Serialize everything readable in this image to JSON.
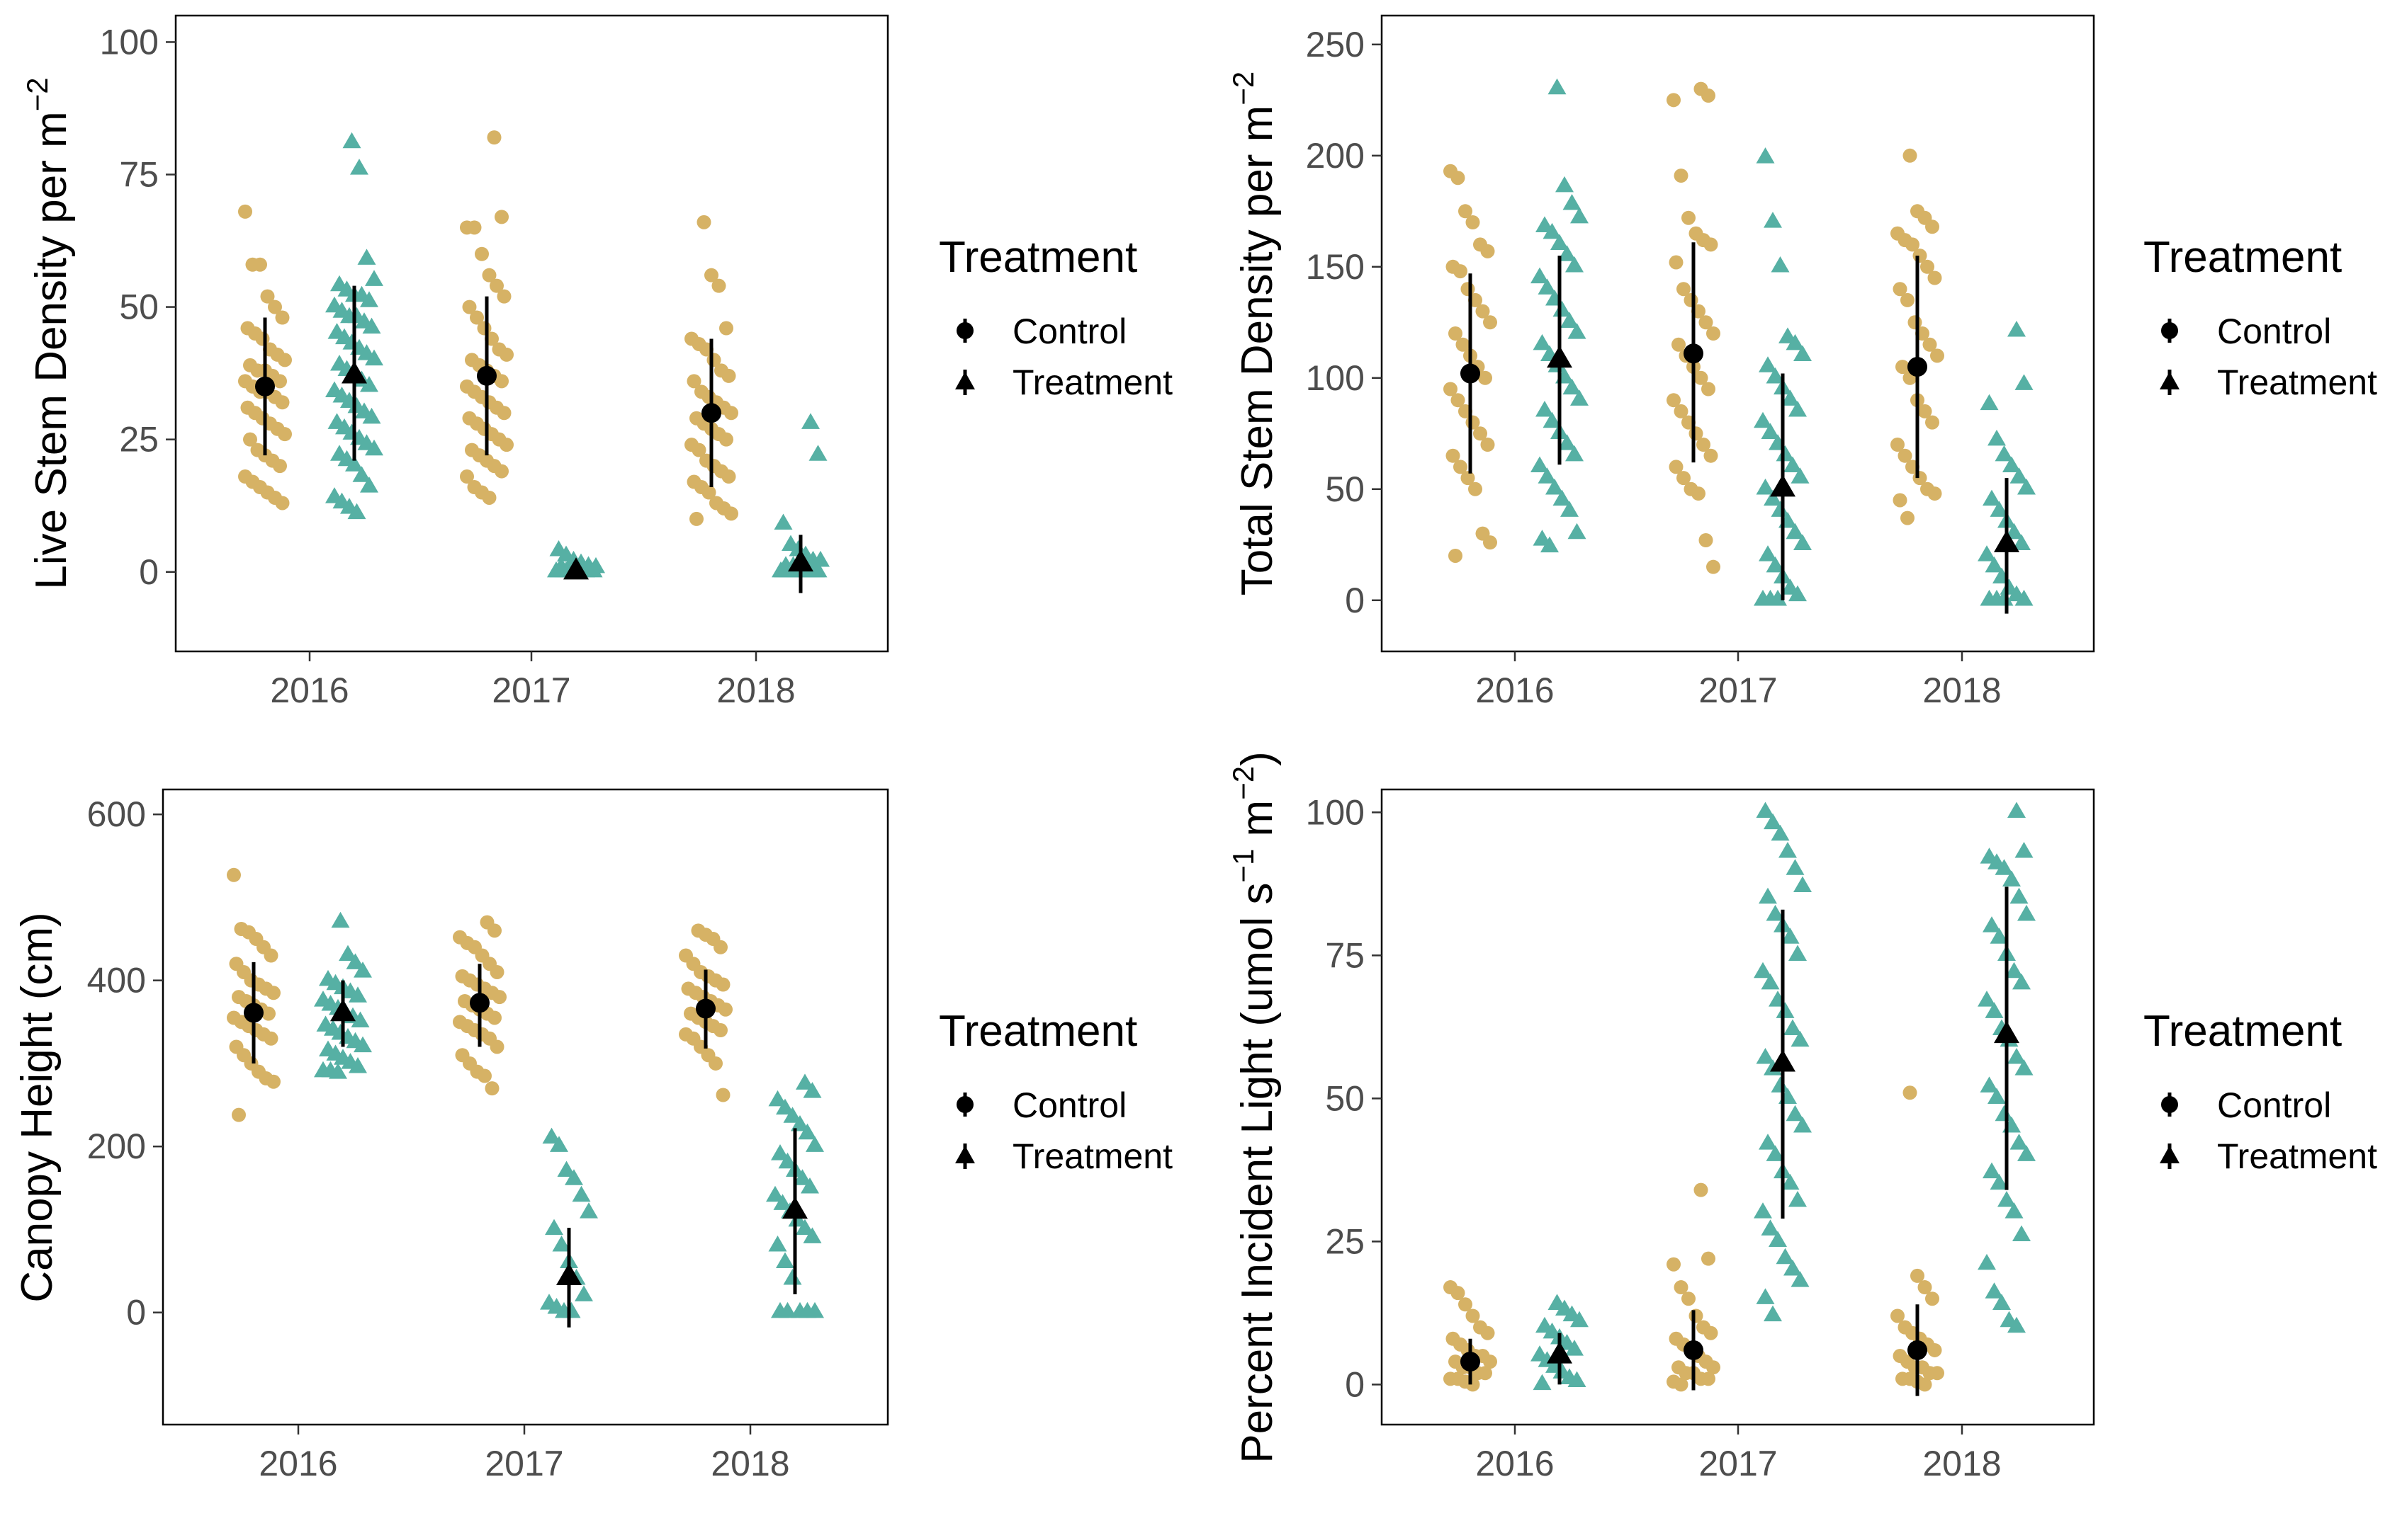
{
  "colors": {
    "control": "#D6B265",
    "treatment": "#56B0A4",
    "summary": "#000000"
  },
  "legend": {
    "title": "Treatment",
    "items": [
      "Control",
      "Treatment"
    ]
  },
  "chart_data": [
    {
      "type": "scatter",
      "ylabel": "Live Stem Density per m",
      "ylabel_sup": "−2",
      "xlabel": "",
      "categories": [
        "2016",
        "2017",
        "2018"
      ],
      "ylim": [
        -15,
        105
      ],
      "yticks": [
        0,
        25,
        50,
        75,
        100
      ],
      "yticklabels": [
        "0",
        "25",
        "50",
        "75",
        "100"
      ],
      "series": [
        {
          "name": "Control",
          "means": [
            35,
            37,
            30
          ],
          "ci_low": [
            22,
            22,
            16
          ],
          "ci_high": [
            48,
            52,
            44
          ],
          "points": [
            [
              68,
              58,
              58,
              52,
              50,
              48,
              46,
              45,
              44,
              42,
              41,
              40,
              39,
              38,
              38,
              37,
              36,
              36,
              35,
              34,
              34,
              33,
              32,
              31,
              30,
              29,
              28,
              27,
              26,
              25,
              23,
              22,
              21,
              20,
              18,
              17,
              16,
              15,
              14,
              13
            ],
            [
              82,
              67,
              65,
              65,
              60,
              56,
              54,
              52,
              50,
              48,
              46,
              44,
              42,
              41,
              40,
              39,
              38,
              37,
              36,
              35,
              34,
              33,
              32,
              31,
              30,
              29,
              28,
              27,
              26,
              25,
              24,
              23,
              22,
              21,
              20,
              19,
              18,
              16,
              15,
              14
            ],
            [
              66,
              56,
              54,
              46,
              44,
              43,
              42,
              40,
              38,
              37,
              36,
              34,
              33,
              32,
              31,
              30,
              29,
              28,
              27,
              26,
              25,
              24,
              23,
              21,
              20,
              19,
              18,
              17,
              16,
              15,
              13,
              12,
              11,
              10
            ]
          ]
        },
        {
          "name": "Treatment",
          "means": [
            37,
            0,
            1.5
          ],
          "ci_low": [
            21,
            0,
            -4
          ],
          "ci_high": [
            54,
            0,
            7
          ],
          "points": [
            [
              81,
              76,
              59,
              55,
              54,
              53,
              52,
              52,
              51,
              50,
              49,
              48,
              48,
              47,
              46,
              45,
              44,
              43,
              42,
              41,
              40,
              39,
              38,
              37,
              36,
              35,
              34,
              33,
              32,
              31,
              30,
              29,
              28,
              27,
              26,
              25,
              24,
              23,
              22,
              21,
              20,
              18,
              16,
              14,
              13,
              12,
              11
            ],
            [
              4,
              3,
              2,
              1.5,
              1,
              0.8,
              0.6,
              0.5,
              0.4,
              0.3,
              0.2,
              0,
              0,
              0,
              0,
              0,
              0,
              0,
              0,
              0
            ],
            [
              28,
              22,
              9,
              5,
              4,
              3,
              2,
              2,
              1,
              1,
              0,
              0,
              0,
              0,
              0,
              0,
              0,
              0,
              0,
              0
            ]
          ]
        }
      ]
    },
    {
      "type": "scatter",
      "ylabel": "Total Stem Density per m",
      "ylabel_sup": "−2",
      "xlabel": "",
      "categories": [
        "2016",
        "2017",
        "2018"
      ],
      "ylim": [
        -23,
        263
      ],
      "yticks": [
        0,
        50,
        100,
        150,
        200,
        250
      ],
      "yticklabels": [
        "0",
        "50",
        "100",
        "150",
        "200",
        "250"
      ],
      "series": [
        {
          "name": "Control",
          "means": [
            102,
            111,
            105
          ],
          "ci_low": [
            57,
            62,
            55
          ],
          "ci_high": [
            147,
            161,
            155
          ],
          "points": [
            [
              193,
              190,
              175,
              170,
              160,
              157,
              150,
              148,
              140,
              135,
              130,
              125,
              120,
              115,
              110,
              105,
              100,
              95,
              90,
              85,
              80,
              75,
              70,
              65,
              60,
              55,
              50,
              30,
              26,
              20
            ],
            [
              230,
              227,
              225,
              191,
              172,
              165,
              162,
              160,
              152,
              140,
              135,
              130,
              125,
              120,
              115,
              110,
              105,
              100,
              95,
              90,
              85,
              80,
              75,
              70,
              65,
              60,
              55,
              50,
              48,
              27,
              15
            ],
            [
              200,
              175,
              172,
              168,
              165,
              162,
              160,
              155,
              150,
              145,
              140,
              135,
              125,
              120,
              115,
              110,
              105,
              100,
              90,
              85,
              80,
              70,
              65,
              60,
              55,
              50,
              48,
              45,
              37
            ]
          ]
        },
        {
          "name": "Treatment",
          "means": [
            108,
            50,
            25
          ],
          "ci_low": [
            61,
            0,
            -6
          ],
          "ci_high": [
            155,
            102,
            55
          ],
          "points": [
            [
              230,
              186,
              178,
              172,
              168,
              165,
              160,
              155,
              150,
              145,
              140,
              135,
              130,
              125,
              120,
              115,
              110,
              105,
              100,
              95,
              90,
              85,
              80,
              75,
              70,
              65,
              60,
              55,
              50,
              45,
              40,
              30,
              27,
              24
            ],
            [
              199,
              170,
              150,
              118,
              115,
              110,
              105,
              100,
              95,
              90,
              85,
              80,
              75,
              70,
              65,
              60,
              55,
              50,
              45,
              40,
              35,
              30,
              25,
              20,
              15,
              10,
              5,
              2,
              0,
              0,
              0
            ],
            [
              121,
              97,
              88,
              72,
              65,
              60,
              55,
              50,
              45,
              40,
              35,
              30,
              25,
              20,
              15,
              10,
              5,
              2,
              0,
              0,
              0,
              0
            ]
          ]
        }
      ]
    },
    {
      "type": "scatter",
      "ylabel": "Canopy Height (cm)",
      "xlabel": "",
      "categories": [
        "2016",
        "2017",
        "2018"
      ],
      "ylim": [
        -135,
        630
      ],
      "yticks": [
        0,
        200,
        400,
        600
      ],
      "yticklabels": [
        "0",
        "200",
        "400",
        "600"
      ],
      "series": [
        {
          "name": "Control",
          "means": [
            361,
            373,
            366
          ],
          "ci_low": [
            300,
            320,
            318
          ],
          "ci_high": [
            422,
            420,
            413
          ],
          "points": [
            [
              527,
              462,
              458,
              450,
              440,
              430,
              420,
              410,
              400,
              395,
              390,
              385,
              380,
              375,
              370,
              365,
              360,
              355,
              350,
              345,
              340,
              335,
              330,
              320,
              310,
              300,
              290,
              282,
              278,
              238
            ],
            [
              470,
              460,
              452,
              445,
              440,
              430,
              420,
              410,
              405,
              400,
              395,
              390,
              385,
              380,
              375,
              370,
              365,
              360,
              355,
              350,
              345,
              340,
              335,
              330,
              320,
              310,
              300,
              290,
              285,
              270
            ],
            [
              460,
              455,
              450,
              440,
              430,
              420,
              410,
              405,
              400,
              395,
              390,
              385,
              380,
              375,
              370,
              365,
              360,
              355,
              350,
              345,
              340,
              335,
              330,
              320,
              310,
              300,
              262
            ]
          ]
        },
        {
          "name": "Treatment",
          "means": [
            360,
            42,
            122
          ],
          "ci_low": [
            320,
            -18,
            22
          ],
          "ci_high": [
            400,
            102,
            222
          ],
          "points": [
            [
              470,
              430,
              420,
              410,
              400,
              395,
              390,
              385,
              380,
              375,
              370,
              365,
              360,
              355,
              350,
              345,
              340,
              335,
              330,
              325,
              320,
              315,
              310,
              305,
              300,
              295,
              290,
              290,
              288
            ],
            [
              210,
              200,
              170,
              160,
              140,
              120,
              100,
              80,
              60,
              40,
              20,
              10,
              5,
              0,
              0
            ],
            [
              275,
              265,
              255,
              245,
              235,
              225,
              215,
              200,
              190,
              180,
              170,
              160,
              150,
              140,
              130,
              120,
              110,
              100,
              90,
              80,
              60,
              40,
              0,
              0,
              0,
              0,
              0
            ]
          ]
        }
      ]
    },
    {
      "type": "scatter",
      "ylabel": "Percent Incident Light  (umol  s",
      "ylabel_sup1": "−1",
      "ylabel_mid": "  m",
      "ylabel_sup2": "−2",
      "ylabel_end": ")",
      "xlabel": "",
      "categories": [
        "2016",
        "2017",
        "2018"
      ],
      "ylim": [
        -7,
        104
      ],
      "yticks": [
        0,
        25,
        50,
        75,
        100
      ],
      "yticklabels": [
        "0",
        "25",
        "50",
        "75",
        "100"
      ],
      "series": [
        {
          "name": "Control",
          "means": [
            4,
            6,
            6
          ],
          "ci_low": [
            0,
            -1,
            -2
          ],
          "ci_high": [
            8,
            13,
            14
          ],
          "points": [
            [
              17,
              16,
              14,
              12,
              10,
              9,
              8,
              7,
              6,
              5,
              5,
              4,
              4,
              3,
              3,
              2,
              2,
              1,
              1,
              0.5,
              0
            ],
            [
              34,
              22,
              21,
              17,
              15,
              12,
              10,
              9,
              8,
              7,
              6,
              5,
              4,
              3,
              3,
              2,
              2,
              1,
              1,
              0.5,
              0
            ],
            [
              51,
              19,
              17,
              15,
              12,
              10,
              9,
              8,
              7,
              6,
              5,
              4,
              3,
              3,
              2,
              2,
              1,
              1,
              0.5,
              0
            ]
          ]
        },
        {
          "name": "Treatment",
          "means": [
            5,
            56,
            61
          ],
          "ci_low": [
            0,
            29,
            34
          ],
          "ci_high": [
            9,
            83,
            87
          ],
          "points": [
            [
              14,
              13,
              12,
              11,
              10,
              9,
              8,
              7,
              6,
              5,
              4,
              3,
              2,
              1,
              0.5,
              0
            ],
            [
              100,
              98,
              96,
              93,
              90,
              87,
              85,
              82,
              80,
              78,
              75,
              72,
              70,
              67,
              65,
              62,
              60,
              57,
              55,
              52,
              50,
              47,
              45,
              42,
              40,
              37,
              35,
              32,
              30,
              27,
              25,
              22,
              20,
              18,
              15,
              12
            ],
            [
              100,
              93,
              92,
              91,
              90,
              88,
              85,
              82,
              80,
              78,
              75,
              72,
              70,
              67,
              65,
              62,
              60,
              57,
              55,
              52,
              50,
              47,
              45,
              42,
              40,
              37,
              35,
              32,
              30,
              26,
              21,
              16,
              14,
              11,
              10
            ]
          ]
        }
      ]
    }
  ]
}
